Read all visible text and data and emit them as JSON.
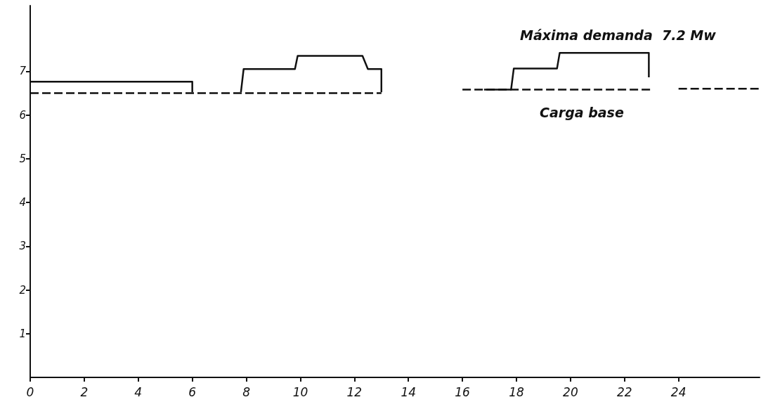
{
  "chart_data": {
    "type": "line",
    "annotations": [
      "Máxima demanda  7.2 Mw",
      "Carga base"
    ],
    "series": [
      {
        "color": "#111111",
        "line_style": "solid",
        "x": [
          0,
          6,
          6,
          7,
          7.8,
          7.9,
          9.8,
          9.9,
          12.3,
          12.5,
          13,
          13,
          14.5,
          16.8,
          17.8,
          17.9,
          19.5,
          19.6,
          22.9,
          22.9
        ],
        "values": [
          6.76,
          6.76,
          6.52,
          null,
          6.52,
          7.05,
          7.05,
          7.35,
          7.35,
          7.05,
          7.05,
          6.52,
          null,
          6.58,
          6.58,
          7.06,
          7.06,
          7.42,
          7.42,
          6.86
        ]
      },
      {
        "color": "#111111",
        "line_style": "dashed",
        "x": [
          0,
          13,
          14.5,
          16,
          23,
          23.5,
          24,
          27
        ],
        "values": [
          6.5,
          6.5,
          null,
          6.58,
          6.58,
          null,
          6.6,
          6.6
        ]
      }
    ],
    "xlim": [
      0,
      27
    ],
    "xticks": [
      0,
      2,
      4,
      6,
      8,
      10,
      12,
      14,
      16,
      18,
      20,
      22,
      24
    ],
    "ylim": [
      0,
      8.5
    ],
    "yticks": [
      1,
      2,
      3,
      4,
      5,
      6,
      7
    ],
    "marker": "none",
    "grid": false
  }
}
